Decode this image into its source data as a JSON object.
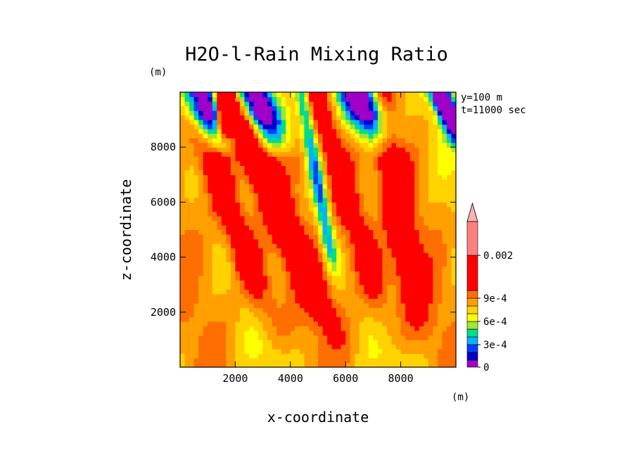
{
  "chart_data": {
    "type": "heatmap",
    "subtype": "filled-contour",
    "title": "H2O-l-Rain Mixing Ratio",
    "xlabel": "x-coordinate",
    "ylabel": "z-coordinate",
    "x_unit": "(m)",
    "y_unit": "(m)",
    "annotations": [
      "y=100 m",
      "t=11000 sec"
    ],
    "xlim": [
      0,
      10000
    ],
    "ylim": [
      0,
      10000
    ],
    "x_ticks": [
      2000,
      4000,
      6000,
      8000
    ],
    "y_ticks": [
      2000,
      4000,
      6000,
      8000
    ],
    "x_tick_labels": [
      "2000",
      "4000",
      "6000",
      "8000"
    ],
    "y_tick_labels": [
      "2000",
      "4000",
      "6000",
      "8000"
    ],
    "colorbar": {
      "levels": [
        0,
        0.0001,
        0.0002,
        0.0003,
        0.0004,
        0.0005,
        0.0006,
        0.0007,
        0.0008,
        0.0009,
        0.001,
        0.002
      ],
      "colors": [
        "#a000c8",
        "#0000c8",
        "#0040ff",
        "#00b4ff",
        "#00dc8c",
        "#a0e632",
        "#ffff00",
        "#ffd200",
        "#ffa000",
        "#ff6e00",
        "#ff0000",
        "#ff8080",
        "#ffb0b0"
      ],
      "extend": "max",
      "tick_values": [
        0,
        0.0003,
        0.0006,
        0.0009,
        0.002
      ],
      "tick_labels": [
        "0",
        "3e-4",
        "6e-4",
        "9e-4",
        "0.002"
      ]
    },
    "field": {
      "description_of_structure": "depth-weighted scalar field in kg/kg, sampled on grid",
      "nx": 60,
      "nz": 60
    }
  }
}
